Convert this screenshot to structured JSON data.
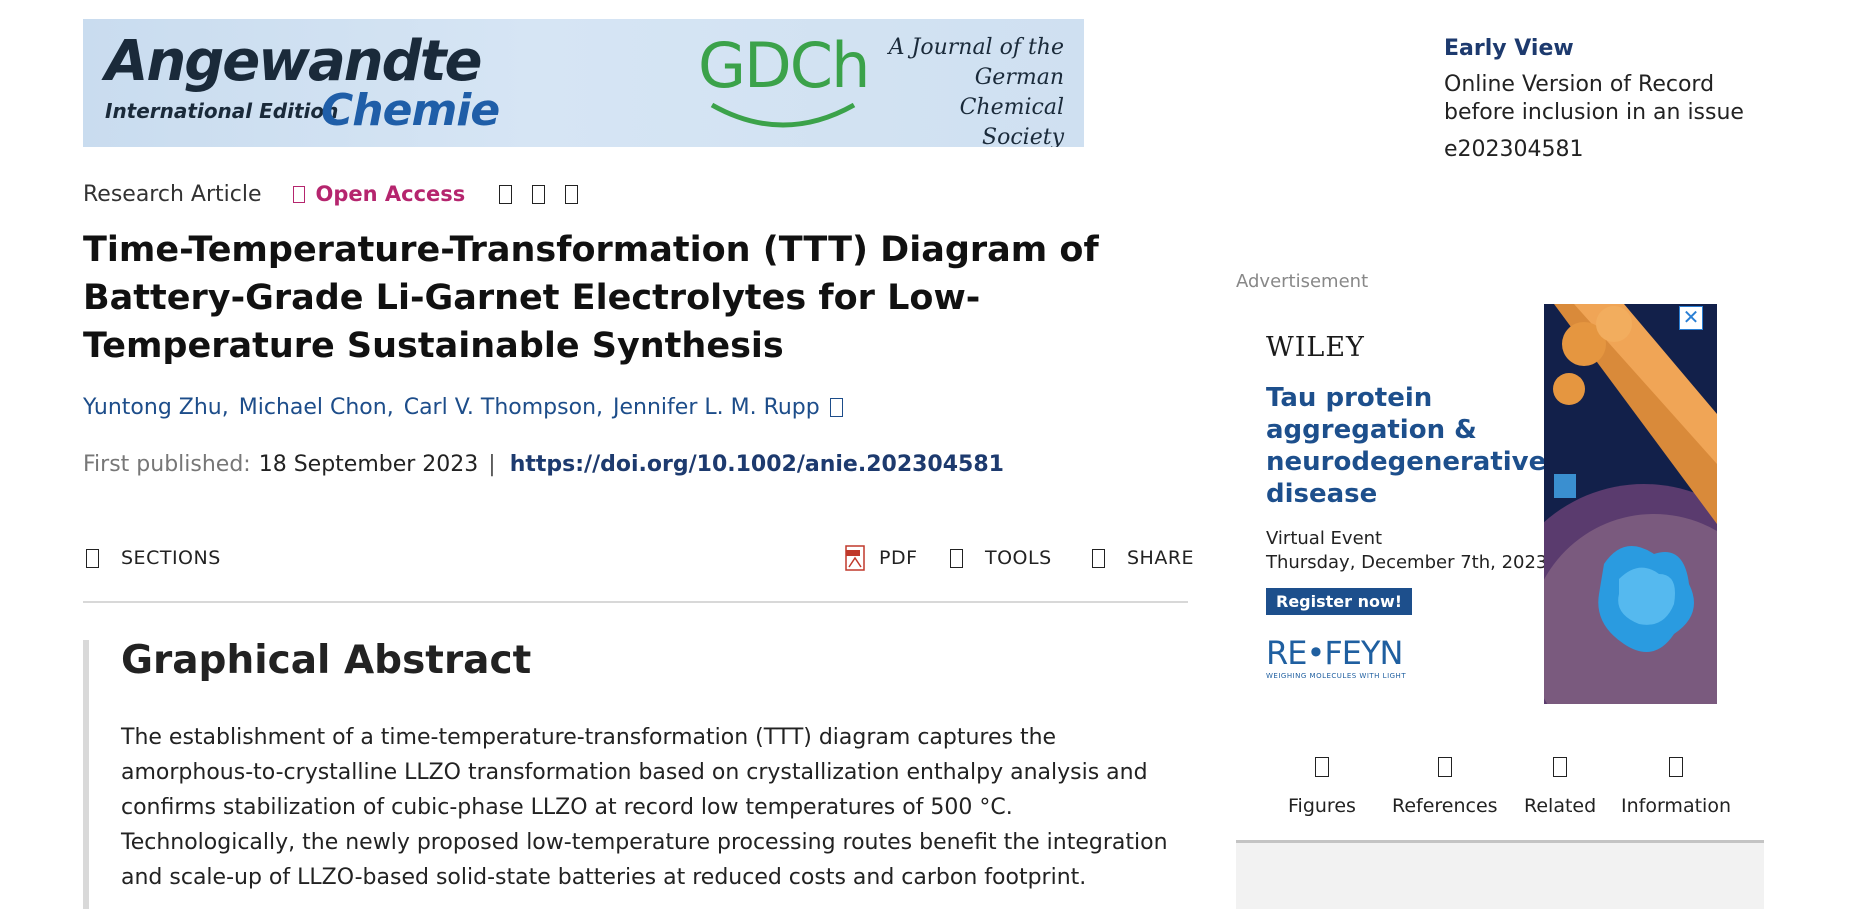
{
  "banner": {
    "journal_line1": "Angewandte",
    "journal_line2": "International Edition",
    "journal_line3": "Chemie",
    "society_logo": "GDCh",
    "tagline": [
      "A Journal of the",
      "German",
      "Chemical Society"
    ]
  },
  "meta": {
    "article_type": "Research Article",
    "open_access_label": "Open Access",
    "open_access_icon": "unlock-icon",
    "action_icons": [
      "citation-icon",
      "bookmark-icon",
      "alert-icon"
    ]
  },
  "title": "Time-Temperature-Transformation (TTT) Diagram of Battery-Grade Li-Garnet Electrolytes for Low-Temperature Sustainable Synthesis",
  "authors": [
    {
      "name": "Yuntong Zhu",
      "sep": ","
    },
    {
      "name": "Michael Chon",
      "sep": ","
    },
    {
      "name": "Carl V. Thompson",
      "sep": ","
    },
    {
      "name": "Jennifer L. M. Rupp",
      "sep": ""
    }
  ],
  "published": {
    "label": "First published:",
    "date": "18 September 2023",
    "separator": "|",
    "doi": "https://doi.org/10.1002/anie.202304581"
  },
  "toolbar": {
    "sections": "SECTIONS",
    "pdf": "PDF",
    "tools": "TOOLS",
    "share": "SHARE"
  },
  "abstract": {
    "heading": "Graphical Abstract",
    "text": "The establishment of a time-temperature-transformation (TTT) diagram captures the amorphous-to-crystalline LLZO transformation based on crystallization enthalpy analysis and confirms stabilization of cubic-phase LLZO at record low temperatures of 500 °C. Technologically, the newly proposed low-temperature processing routes benefit the integration and scale-up of LLZO-based solid-state batteries at reduced costs and carbon footprint."
  },
  "early_view": {
    "title": "Early View",
    "desc_line1": "Online Version of Record",
    "desc_line2": "before inclusion in an issue",
    "article_id": "e202304581"
  },
  "ad": {
    "label": "Advertisement",
    "brand": "WILEY",
    "headline": "Tau protein aggregation & neurodegenerative disease",
    "event_type": "Virtual Event",
    "event_date": "Thursday, December 7th, 2023",
    "cta": "Register now!",
    "sponsor": "RE•FEYN",
    "sponsor_tagline": "WEIGHING MOLECULES WITH LIGHT",
    "close_symbol": "✕"
  },
  "right_nav": [
    {
      "label": "Figures",
      "icon": "figures-icon"
    },
    {
      "label": "References",
      "icon": "references-icon"
    },
    {
      "label": "Related",
      "icon": "related-icon"
    },
    {
      "label": "Information",
      "icon": "information-icon"
    }
  ]
}
